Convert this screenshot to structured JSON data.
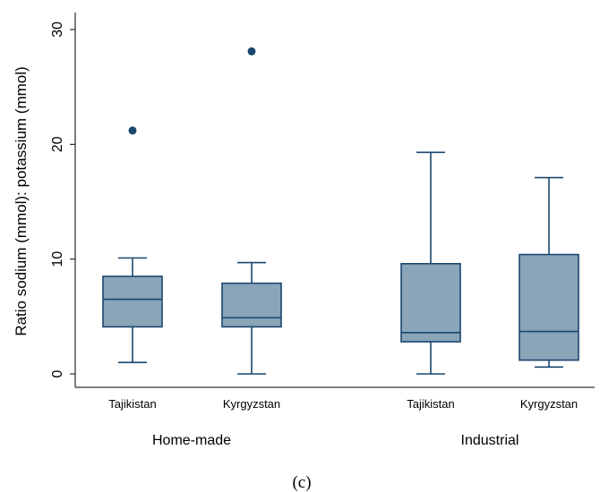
{
  "chart_data": {
    "type": "box",
    "ylabel": "Ratio sodium (mmol): potassium (mmol)",
    "y_ticks": [
      0,
      10,
      20,
      30
    ],
    "ylim": [
      -1,
      31.5
    ],
    "grid": false,
    "groups": [
      {
        "label": "Home-made",
        "boxes": [
          {
            "category": "Tajikistan",
            "whisker_low": 1.0,
            "q1": 4.1,
            "median": 6.5,
            "q3": 8.5,
            "whisker_high": 10.1,
            "outliers": [
              21.2
            ]
          },
          {
            "category": "Kyrgyzstan",
            "whisker_low": 0.0,
            "q1": 4.1,
            "median": 4.9,
            "q3": 7.9,
            "whisker_high": 9.7,
            "outliers": [
              28.1
            ]
          }
        ]
      },
      {
        "label": "Industrial",
        "boxes": [
          {
            "category": "Tajikistan",
            "whisker_low": 0.0,
            "q1": 2.8,
            "median": 3.6,
            "q3": 9.6,
            "whisker_high": 19.3,
            "outliers": []
          },
          {
            "category": "Kyrgyzstan",
            "whisker_low": 0.6,
            "q1": 1.2,
            "median": 3.7,
            "q3": 10.4,
            "whisker_high": 17.1,
            "outliers": []
          }
        ]
      }
    ],
    "colors": {
      "box_fill": "#8aa4b8",
      "box_stroke": "#1a476f",
      "outlier": "#1a476f",
      "axis": "#000000"
    }
  },
  "caption": "(c)"
}
